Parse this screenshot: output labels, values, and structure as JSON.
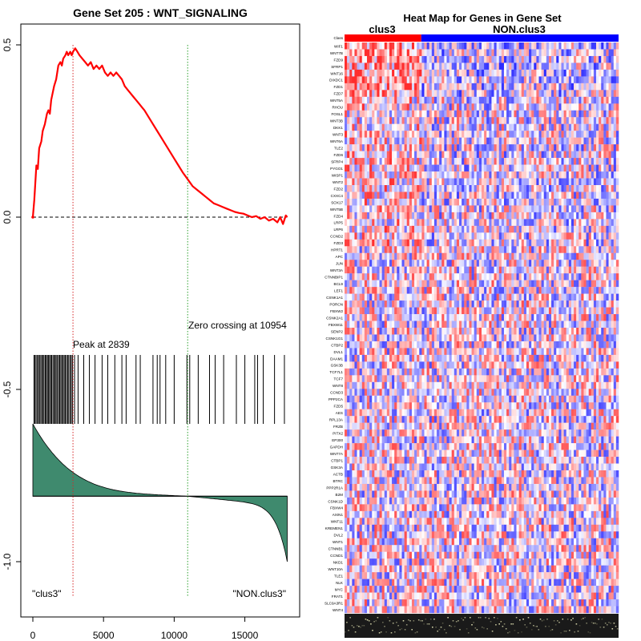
{
  "chart_data": [
    {
      "type": "line",
      "title": "Gene Set  205 : WNT_SIGNALING",
      "xlabel": "",
      "ylabel": "",
      "xlim": [
        0,
        18500
      ],
      "ylim": [
        -1.1,
        0.55
      ],
      "xticks": [
        0,
        5000,
        10000,
        15000
      ],
      "xtick_labels": [
        "0",
        "5000",
        "10000",
        "15000"
      ],
      "yticks": [
        0.5,
        0.0,
        -0.5,
        -1.0
      ],
      "ytick_labels": [
        "0.5",
        "0.0",
        "-0.5",
        "-1.0"
      ],
      "grid": false,
      "series": [
        {
          "color": "#ff0000",
          "x": [
            0,
            100,
            250,
            350,
            450,
            600,
            700,
            850,
            1000,
            1100,
            1200,
            1300,
            1400,
            1500,
            1650,
            1800,
            1950,
            2050,
            2150,
            2300,
            2400,
            2500,
            2650,
            2750,
            2839,
            3000,
            3150,
            3300,
            3500,
            3700,
            3900,
            4100,
            4300,
            4500,
            4700,
            4900,
            5100,
            5300,
            5500,
            5700,
            5900,
            6100,
            6300,
            6500,
            6700,
            6900,
            7100,
            7300,
            7500,
            7700,
            7900,
            8200,
            8500,
            8800,
            9100,
            9400,
            9700,
            10000,
            10300,
            10600,
            10954,
            11300,
            11600,
            11900,
            12200,
            12500,
            12800,
            13100,
            13400,
            13700,
            14000,
            14300,
            14600,
            14900,
            15200,
            15500,
            15800,
            16100,
            16400,
            16700,
            17000,
            17300,
            17500,
            17700,
            17900,
            18000
          ],
          "y": [
            0.0,
            0.05,
            0.15,
            0.14,
            0.2,
            0.22,
            0.25,
            0.27,
            0.3,
            0.31,
            0.3,
            0.34,
            0.36,
            0.38,
            0.4,
            0.44,
            0.45,
            0.44,
            0.46,
            0.47,
            0.48,
            0.47,
            0.48,
            0.47,
            0.48,
            0.49,
            0.48,
            0.47,
            0.46,
            0.45,
            0.44,
            0.45,
            0.43,
            0.44,
            0.43,
            0.44,
            0.42,
            0.41,
            0.42,
            0.41,
            0.42,
            0.41,
            0.4,
            0.38,
            0.37,
            0.36,
            0.35,
            0.34,
            0.33,
            0.32,
            0.31,
            0.29,
            0.27,
            0.25,
            0.23,
            0.21,
            0.19,
            0.17,
            0.15,
            0.13,
            0.11,
            0.09,
            0.08,
            0.07,
            0.06,
            0.05,
            0.04,
            0.035,
            0.03,
            0.025,
            0.02,
            0.015,
            0.012,
            0.01,
            0.005,
            0.0,
            0.003,
            -0.005,
            0.0,
            -0.01,
            -0.005,
            -0.015,
            0.0,
            -0.02,
            0.005,
            0.0
          ]
        }
      ],
      "reference_lines": [
        {
          "orientation": "horizontal",
          "y": 0.0,
          "style": "dashed",
          "color": "#000000"
        },
        {
          "orientation": "vertical",
          "x": 2839,
          "style": "dotted",
          "color": "#d62728"
        },
        {
          "orientation": "vertical",
          "x": 10954,
          "style": "dotted",
          "color": "#2ca02c"
        }
      ],
      "hits": [
        80,
        150,
        230,
        320,
        400,
        470,
        560,
        640,
        720,
        790,
        880,
        950,
        1030,
        1100,
        1180,
        1260,
        1330,
        1420,
        1500,
        1580,
        1650,
        1740,
        1820,
        1900,
        1980,
        2060,
        2140,
        2220,
        2300,
        2380,
        2470,
        2540,
        2640,
        2720,
        2800,
        2950,
        3200,
        3600,
        4000,
        4400,
        4900,
        5300,
        5800,
        6300,
        6600,
        7300,
        7600,
        8500,
        8800,
        9000,
        9400,
        10000,
        10900,
        11100,
        11700,
        12500,
        12900,
        13500,
        14400,
        15000,
        15700,
        15900,
        16300,
        17100,
        17800
      ],
      "hits_ymin": -0.6,
      "hits_ymax": -0.4,
      "ranked_metric_baseline": -0.81,
      "ranked_metric_top": -0.6,
      "ranked_metric_bottom": -1.0,
      "annotations": {
        "peak": "Peak at 2839",
        "zero_crossing": "Zero crossing at 10954",
        "left_group": "\"clus3\"",
        "right_group": "\"NON.clus3\""
      },
      "colors": {
        "running_score": "#ff0000",
        "ranked_metric_fill": "#3f8a6e",
        "peak_line": "#d62728",
        "zero_line": "#2ca02c"
      }
    },
    {
      "type": "heatmap",
      "title": "Heat Map for Genes in Gene Set",
      "phenotypes": [
        "clus3",
        "NON.clus3"
      ],
      "phenotype_colors": [
        "#ff0000",
        "#0000ff"
      ],
      "phenotype_split_fraction": 0.28,
      "color_scale": [
        "#0000ff",
        "#ffffff",
        "#ff0000"
      ],
      "rows": [
        "Class",
        "WIF1",
        "WNT7B",
        "FZD9",
        "SFRP1",
        "WNT16",
        "DIXDC1",
        "FZD1",
        "FZD7",
        "WNT5A",
        "RHOU",
        "FOSL1",
        "WNT3B",
        "DKK1",
        "WNT3",
        "WNT6A",
        "TLE2",
        "FZD6",
        "SFRP4",
        "PYGO1",
        "WISP1",
        "WNT2",
        "FZD2",
        "CXXC4",
        "SOX17",
        "WNT5B",
        "FZD4",
        "LRP5",
        "LRP6",
        "CCND2",
        "FZD3",
        "HPRT1",
        "APC",
        "JUN",
        "WNT3A",
        "CTNNBIP1",
        "BCL9",
        "LEF1",
        "CSNK1A1",
        "PORCN",
        "FBXW2",
        "CSNK2A1",
        "FBXW11",
        "SENP2",
        "CSNK1G1",
        "CTBP2",
        "DVL1",
        "DAAM1",
        "GSK3B",
        "TCF7L1",
        "TCF7",
        "WNT8",
        "CCND3",
        "PPP2CA",
        "FZD5",
        "AES",
        "RPL13A",
        "FRZB",
        "PITX2",
        "EP300",
        "GAPDH",
        "WNT7A",
        "CTBP1",
        "GSK3A",
        "ACTB",
        "BTRC",
        "PPP2R1A",
        "B2M",
        "CSNK1D",
        "FBXW4",
        "AXIN1",
        "WNT11",
        "KREMEN1",
        "DVL2",
        "WNT1",
        "CTNNB1",
        "CCND1",
        "NKD1",
        "WNT10A",
        "TLE1",
        "NLK",
        "MYC",
        "FRAT1",
        "SLC9A3R1",
        "WNT4"
      ]
    }
  ]
}
